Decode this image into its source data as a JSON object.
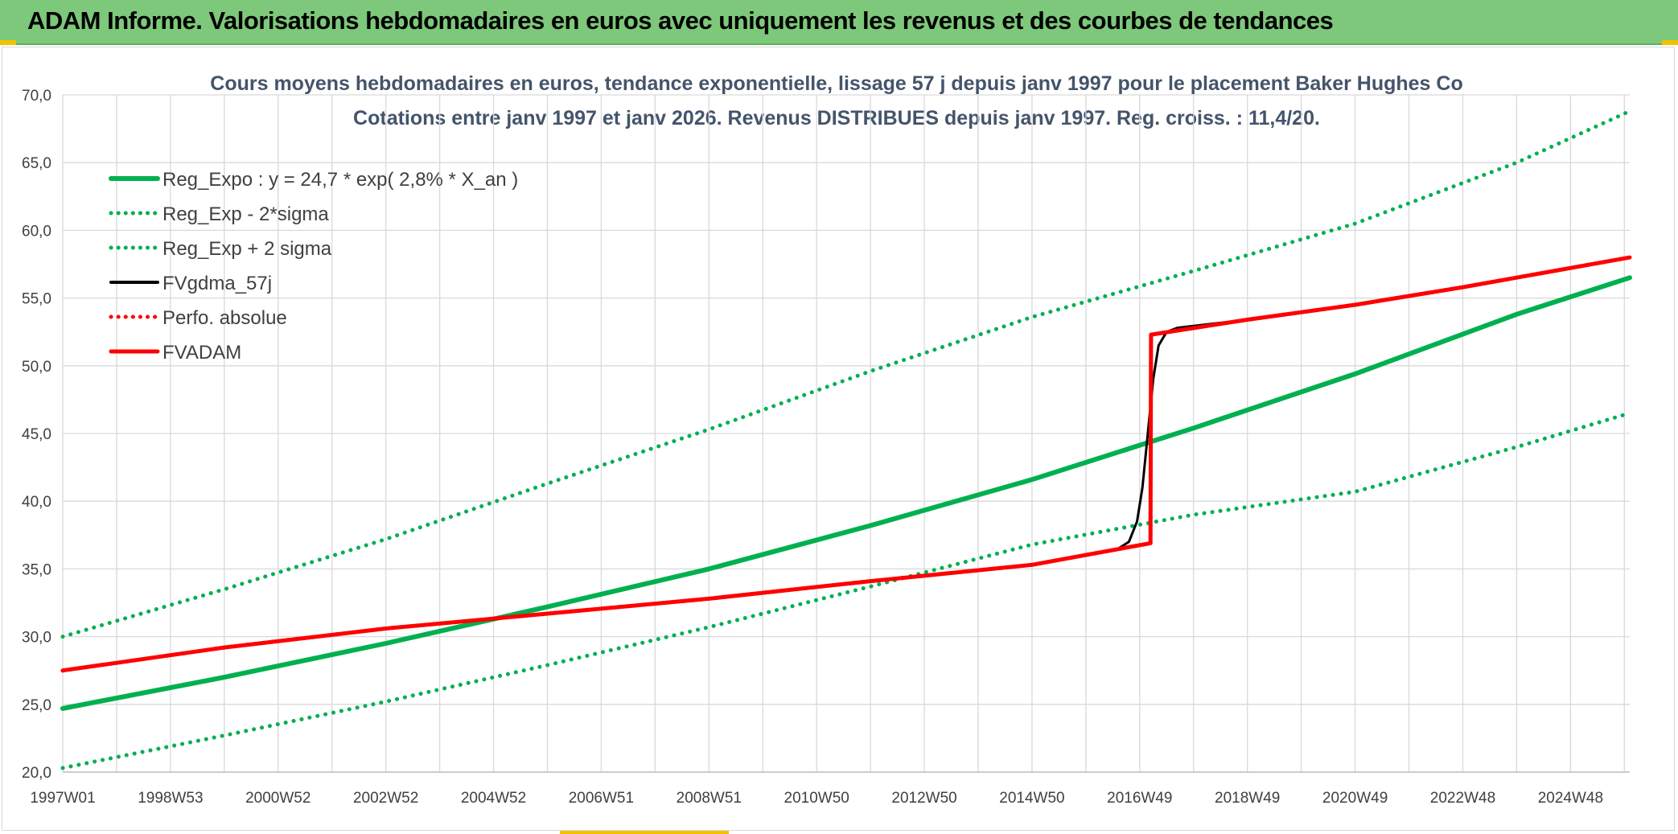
{
  "banner": {
    "title": "ADAM Informe. Valorisations hebdomadaires en euros avec uniquement les revenus et des courbes de tendances"
  },
  "colors": {
    "banner_bg": "#7dc87a",
    "green": "#00b050",
    "red": "#ff0000",
    "black": "#000000",
    "grid": "#d9d9d9"
  },
  "chart_data": {
    "type": "line",
    "title": "Cours moyens hebdomadaires en euros, tendance exponentielle, lissage 57 j depuis janv 1997 pour le placement Baker Hughes Co",
    "subtitle": "Cotations entre janv 1997 et janv 2026. Revenus DISTRIBUES depuis janv 1997. Reg. croiss. : 11,4/20.",
    "xlabel": "",
    "ylabel": "",
    "ylim": [
      20,
      70
    ],
    "xlim": [
      1997.0,
      2026.1
    ],
    "yticks": [
      "20,0",
      "25,0",
      "30,0",
      "35,0",
      "40,0",
      "45,0",
      "50,0",
      "55,0",
      "60,0",
      "65,0",
      "70,0"
    ],
    "xticks": [
      {
        "label": "1997W01",
        "x": 1997.0
      },
      {
        "label": "1998W53",
        "x": 1999.0
      },
      {
        "label": "2000W52",
        "x": 2001.0
      },
      {
        "label": "2002W52",
        "x": 2003.0
      },
      {
        "label": "2004W52",
        "x": 2005.0
      },
      {
        "label": "2006W51",
        "x": 2007.0
      },
      {
        "label": "2008W51",
        "x": 2009.0
      },
      {
        "label": "2010W50",
        "x": 2011.0
      },
      {
        "label": "2012W50",
        "x": 2013.0
      },
      {
        "label": "2014W50",
        "x": 2015.0
      },
      {
        "label": "2016W49",
        "x": 2017.0
      },
      {
        "label": "2018W49",
        "x": 2019.0
      },
      {
        "label": "2020W49",
        "x": 2021.0
      },
      {
        "label": "2022W48",
        "x": 2023.0
      },
      {
        "label": "2024W48",
        "x": 2025.0
      }
    ],
    "grid": true,
    "legend_position": "top-left",
    "series": [
      {
        "name": "Reg_Expo : y = 24,7 * exp( 2,8% *  X_an )",
        "color": "#00b050",
        "style": "solid",
        "points": [
          [
            1997.0,
            24.7
          ],
          [
            2000.0,
            27.0
          ],
          [
            2003.0,
            29.5
          ],
          [
            2006.0,
            32.2
          ],
          [
            2009.0,
            35.0
          ],
          [
            2012.0,
            38.2
          ],
          [
            2015.0,
            41.6
          ],
          [
            2018.0,
            45.4
          ],
          [
            2021.0,
            49.4
          ],
          [
            2024.0,
            53.8
          ],
          [
            2026.1,
            56.5
          ]
        ]
      },
      {
        "name": "Reg_Exp - 2*sigma",
        "color": "#00b050",
        "style": "dotted",
        "points": [
          [
            1997.0,
            20.3
          ],
          [
            2000.0,
            22.7
          ],
          [
            2003.0,
            25.2
          ],
          [
            2006.0,
            27.9
          ],
          [
            2009.0,
            30.7
          ],
          [
            2012.0,
            33.7
          ],
          [
            2015.0,
            36.8
          ],
          [
            2018.0,
            39.0
          ],
          [
            2021.0,
            40.7
          ],
          [
            2024.0,
            44.0
          ],
          [
            2026.1,
            46.5
          ]
        ]
      },
      {
        "name": "Reg_Exp + 2 sigma",
        "color": "#00b050",
        "style": "dotted",
        "points": [
          [
            1997.0,
            30.0
          ],
          [
            2000.0,
            33.5
          ],
          [
            2003.0,
            37.2
          ],
          [
            2006.0,
            41.3
          ],
          [
            2009.0,
            45.3
          ],
          [
            2012.0,
            49.6
          ],
          [
            2015.0,
            53.6
          ],
          [
            2018.0,
            57.0
          ],
          [
            2021.0,
            60.5
          ],
          [
            2024.0,
            65.0
          ],
          [
            2026.1,
            68.8
          ]
        ]
      },
      {
        "name": "FVgdma_57j",
        "color": "#000000",
        "style": "solid",
        "points": [
          [
            1997.0,
            27.5
          ],
          [
            2000.0,
            29.2
          ],
          [
            2003.0,
            30.6
          ],
          [
            2006.0,
            31.7
          ],
          [
            2009.0,
            32.8
          ],
          [
            2012.0,
            34.1
          ],
          [
            2015.0,
            35.3
          ],
          [
            2016.6,
            36.5
          ],
          [
            2016.8,
            37.0
          ],
          [
            2016.95,
            38.5
          ],
          [
            2017.05,
            41.0
          ],
          [
            2017.15,
            45.0
          ],
          [
            2017.25,
            49.0
          ],
          [
            2017.35,
            51.5
          ],
          [
            2017.5,
            52.5
          ],
          [
            2017.7,
            52.8
          ],
          [
            2019.0,
            53.4
          ],
          [
            2021.0,
            54.5
          ],
          [
            2023.0,
            55.8
          ],
          [
            2026.1,
            58.0
          ]
        ]
      },
      {
        "name": "Perfo. absolue",
        "color": "#ff0000",
        "style": "dotted",
        "points": [
          [
            1997.0,
            27.5
          ],
          [
            2000.0,
            29.2
          ],
          [
            2003.0,
            30.6
          ],
          [
            2006.0,
            31.7
          ],
          [
            2009.0,
            32.8
          ],
          [
            2012.0,
            34.1
          ],
          [
            2015.0,
            35.3
          ],
          [
            2017.2,
            36.9
          ],
          [
            2017.21,
            52.3
          ],
          [
            2019.0,
            53.4
          ],
          [
            2021.0,
            54.5
          ],
          [
            2023.0,
            55.8
          ],
          [
            2026.1,
            58.0
          ]
        ]
      },
      {
        "name": "FVADAM",
        "color": "#ff0000",
        "style": "solid",
        "points": [
          [
            1997.0,
            27.5
          ],
          [
            2000.0,
            29.2
          ],
          [
            2003.0,
            30.6
          ],
          [
            2006.0,
            31.7
          ],
          [
            2009.0,
            32.8
          ],
          [
            2012.0,
            34.1
          ],
          [
            2015.0,
            35.3
          ],
          [
            2017.2,
            36.9
          ],
          [
            2017.21,
            52.3
          ],
          [
            2019.0,
            53.4
          ],
          [
            2021.0,
            54.5
          ],
          [
            2023.0,
            55.8
          ],
          [
            2026.1,
            58.0
          ]
        ]
      }
    ]
  }
}
